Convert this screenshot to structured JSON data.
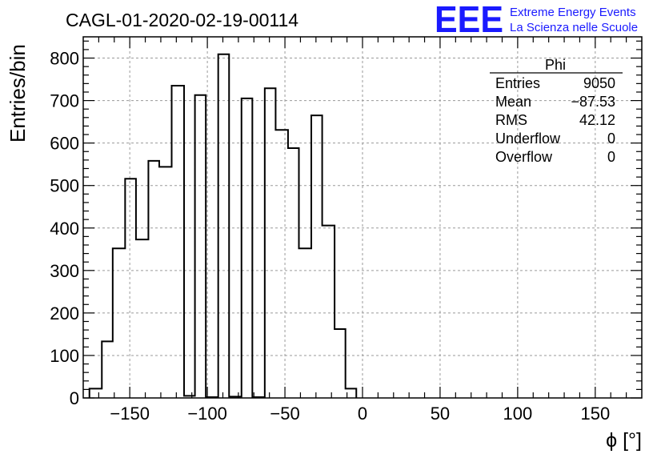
{
  "header": {
    "title": "CAGL-01-2020-02-19-00114",
    "logo_mark": "EEE",
    "logo_line1": "Extreme Energy Events",
    "logo_line2": "La Scienza nelle Scuole"
  },
  "stats": {
    "name": "Phi",
    "rows": [
      {
        "label": "Entries",
        "value": "9050"
      },
      {
        "label": "Mean",
        "value": "−87.53"
      },
      {
        "label": "RMS",
        "value": "42.12"
      },
      {
        "label": "Underflow",
        "value": "0"
      },
      {
        "label": "Overflow",
        "value": "0"
      }
    ]
  },
  "colors": {
    "logo": "#1a1aff",
    "line": "#000000",
    "grid": "#9a9a9a"
  },
  "chart_data": {
    "type": "histogram",
    "title": "CAGL-01-2020-02-19-00114",
    "xlabel": "ϕ [°]",
    "ylabel": "Entries/bin",
    "xlim": [
      -180,
      180
    ],
    "ylim": [
      0,
      850
    ],
    "grid": true,
    "xticks": [
      -150,
      -100,
      -50,
      0,
      50,
      100,
      150
    ],
    "yticks": [
      0,
      100,
      200,
      300,
      400,
      500,
      600,
      700,
      800
    ],
    "bin_edges": [
      -176,
      -168,
      -161,
      -153,
      -146,
      -138,
      -131,
      -123,
      -115,
      -108,
      -101,
      -93,
      -86,
      -78,
      -71,
      -63,
      -56,
      -48,
      -41,
      -33,
      -26,
      -18,
      -11,
      -4
    ],
    "values": [
      22,
      133,
      352,
      516,
      373,
      558,
      544,
      735,
      5,
      713,
      2,
      809,
      3,
      705,
      2,
      729,
      631,
      588,
      352,
      665,
      406,
      162,
      22
    ]
  }
}
